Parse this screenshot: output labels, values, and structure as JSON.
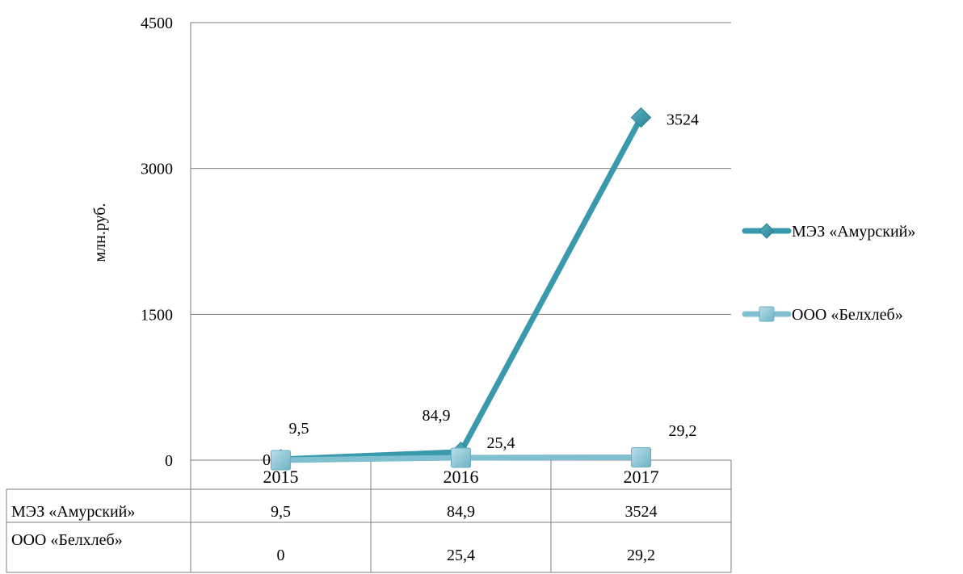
{
  "chart_data": {
    "type": "line",
    "categories": [
      "2015",
      "2016",
      "2017"
    ],
    "ylabel": "млн.руб.",
    "ylim": [
      0,
      4500
    ],
    "yticks": [
      "0",
      "1500",
      "3000",
      "4500"
    ],
    "grid": true,
    "legend_position": "right",
    "series": [
      {
        "name": "МЭЗ «Амурский»",
        "values": [
          9.5,
          84.9,
          3524
        ],
        "labels": [
          "9,5",
          "84,9",
          "3524"
        ],
        "marker": "diamond",
        "color": "#3a9aad"
      },
      {
        "name": "ООО «Белхлеб»",
        "values": [
          0,
          25.4,
          29.2
        ],
        "labels": [
          "0",
          "25,4",
          "29,2"
        ],
        "marker": "square",
        "color": "#7fbfcf"
      }
    ]
  }
}
